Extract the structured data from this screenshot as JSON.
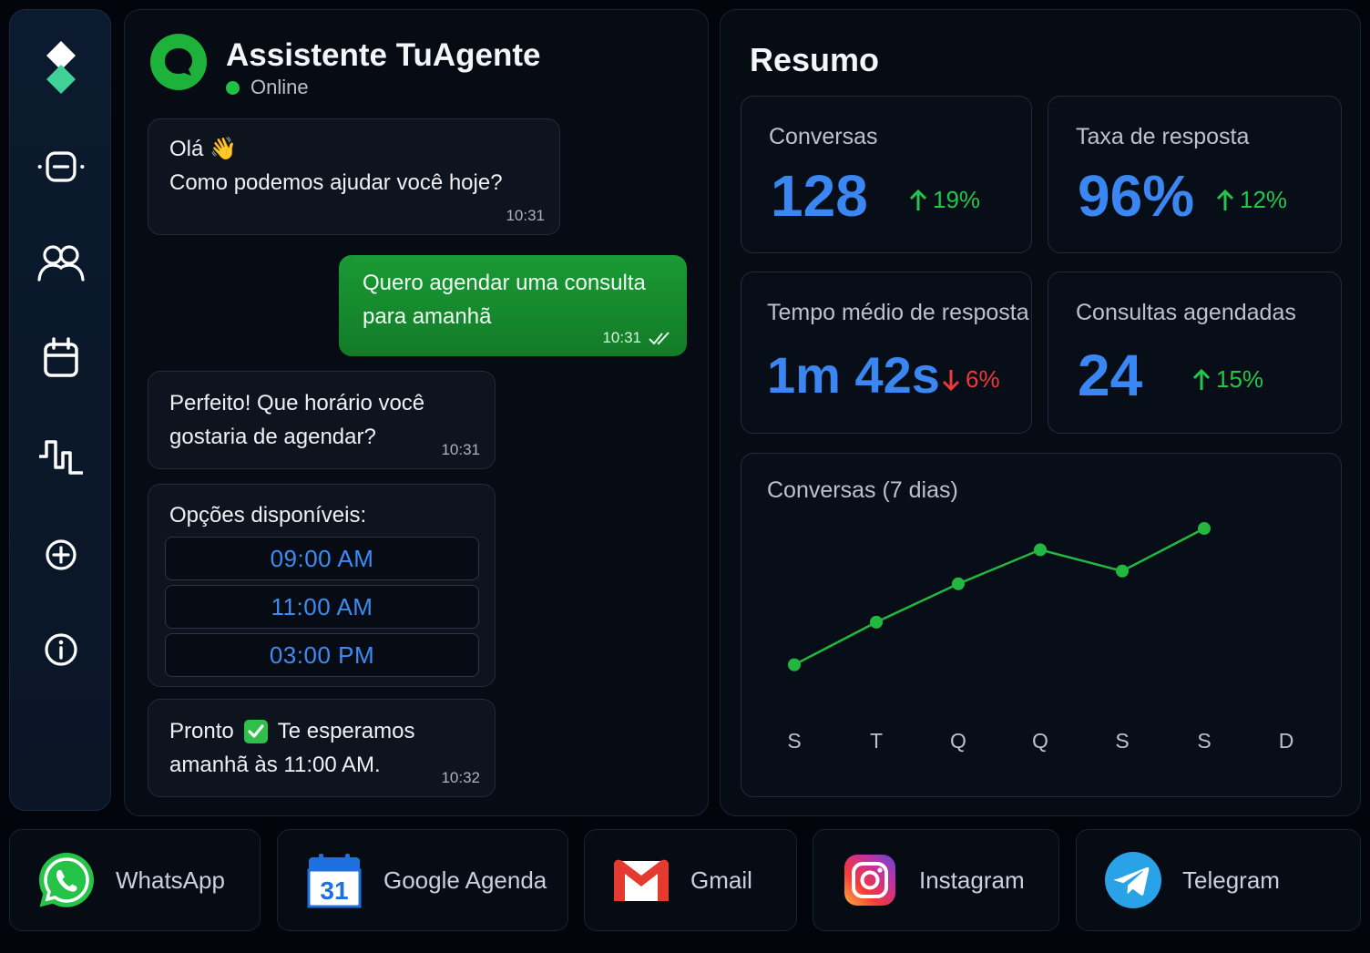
{
  "chat": {
    "title": "Assistente TuAgente",
    "status": "Online",
    "messages": [
      {
        "line1": "Olá 👋",
        "line2": "Como podemos ajudar você hoje?",
        "time": "10:31"
      },
      {
        "line1": "Quero agendar uma consulta",
        "line2": "para amanhã",
        "time": "10:31"
      },
      {
        "line1": "Perfeito! Que horário você",
        "line2": "gostaria de agendar?",
        "time": "10:31"
      },
      {
        "title": "Opções disponíveis:",
        "options": [
          "09:00 AM",
          "11:00 AM",
          "03:00 PM"
        ]
      },
      {
        "line1a": "Pronto",
        "line1b": "Te esperamos",
        "line2": "amanhã às 11:00 AM.",
        "time": "10:32"
      }
    ]
  },
  "summary": {
    "title": "Resumo",
    "cards": [
      {
        "label": "Conversas",
        "value": "128",
        "delta": "19%",
        "direction": "up"
      },
      {
        "label": "Taxa de resposta",
        "value": "96%",
        "delta": "12%",
        "direction": "up"
      },
      {
        "label": "Tempo médio de resposta",
        "value": "1m 42s",
        "delta": "6%",
        "direction": "down"
      },
      {
        "label": "Consultas agendadas",
        "value": "24",
        "delta": "15%",
        "direction": "up"
      }
    ]
  },
  "chart_data": {
    "type": "line",
    "title": "Conversas (7 dias)",
    "categories": [
      "S",
      "T",
      "Q",
      "Q",
      "S",
      "S",
      "D"
    ],
    "values": [
      10,
      30,
      48,
      64,
      54,
      74,
      null
    ],
    "color": "#22b83f",
    "grid": false
  },
  "integrations": [
    {
      "label": "WhatsApp",
      "icon": "whatsapp-icon"
    },
    {
      "label": "Google Agenda",
      "icon": "google-calendar-icon",
      "day": "31"
    },
    {
      "label": "Gmail",
      "icon": "gmail-icon"
    },
    {
      "label": "Instagram",
      "icon": "instagram-icon"
    },
    {
      "label": "Telegram",
      "icon": "telegram-icon"
    }
  ],
  "colors": {
    "accent_blue": "#3a86f2",
    "accent_green": "#1db33b",
    "up": "#22c74a",
    "down": "#f03838"
  }
}
